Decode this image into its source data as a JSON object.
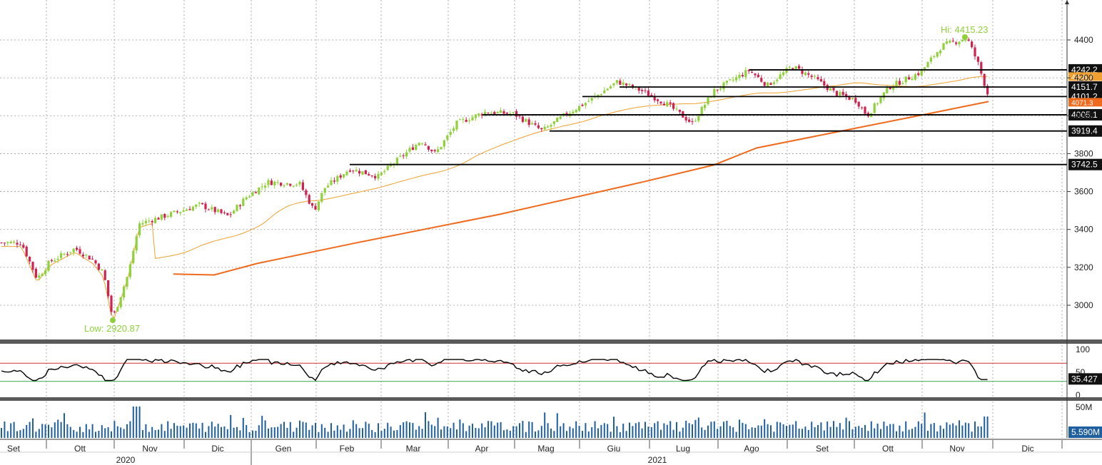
{
  "chart_data": {
    "type": "candlestick",
    "price_axis": {
      "ticks": [
        3000,
        3200,
        3400,
        3600,
        3800,
        4000,
        4200,
        4400
      ],
      "range": [
        2830,
        4590
      ]
    },
    "time_axis": {
      "months": [
        "Set",
        "Ott",
        "Nov",
        "Dic",
        "Gen",
        "Feb",
        "Mar",
        "Apr",
        "Mag",
        "Giu",
        "Lug",
        "Ago",
        "Set",
        "Ott",
        "Nov",
        "Dic"
      ],
      "years": [
        "2020",
        "2021"
      ]
    },
    "annotations": {
      "high_label": "Hi: 4415.23",
      "low_label": "Low: 2920.87"
    },
    "levels": [
      {
        "label": "4242.2",
        "value": 4242.2,
        "start": "2021-08"
      },
      {
        "label": "4151.7",
        "value": 4151.7,
        "start": "2021-06"
      },
      {
        "label": "4101.2",
        "value": 4101.2,
        "start": "2021-05"
      },
      {
        "label": "4005.1",
        "value": 4005.1,
        "start": "2021-04"
      },
      {
        "label": "3919.4",
        "value": 3919.4,
        "start": "2021-05"
      },
      {
        "label": "3742.5",
        "value": 3742.5,
        "start": "2021-02"
      }
    ],
    "moving_average_labels": [
      "4206.7",
      "4071.3"
    ],
    "rsi": {
      "ticks": [
        0,
        50,
        100
      ],
      "overbought": 70,
      "oversold": 30,
      "last_label": "35.427"
    },
    "volume": {
      "tick_label": "50M",
      "last_label": "5.590M"
    },
    "colors": {
      "up": "#8fd13a",
      "down": "#d0224f",
      "ma_short": "#f0a030",
      "ma_long": "#ef6a1c",
      "annotation": "#8fd13a",
      "volume": "#1f5fa0"
    }
  }
}
